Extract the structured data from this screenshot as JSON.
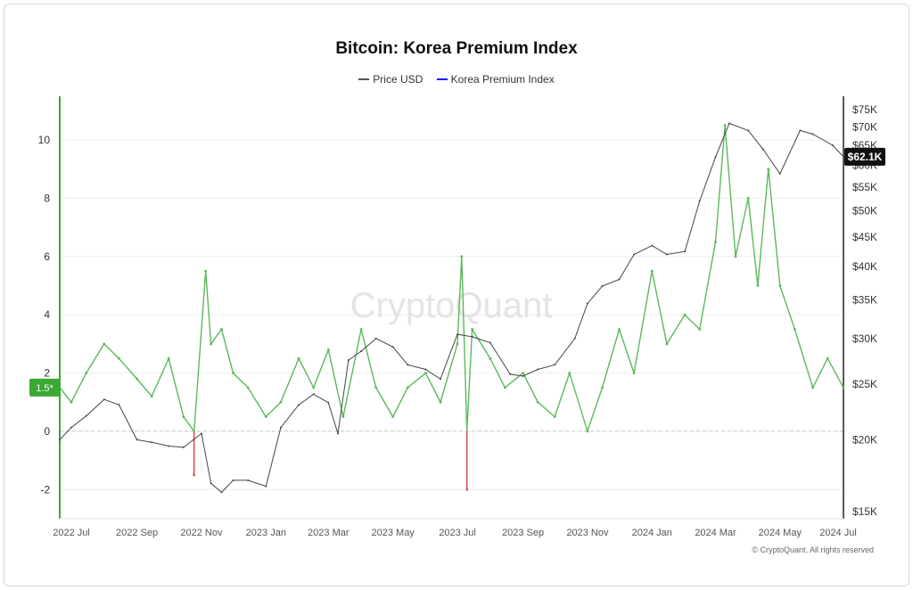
{
  "chart_data": {
    "type": "line",
    "title": "Bitcoin: Korea Premium Index",
    "credit": "© CryptoQuant. All rights reserved",
    "watermark": "CryptoQuant",
    "legend": [
      {
        "name": "Price USD",
        "color": "#555555"
      },
      {
        "name": "Korea Premium Index",
        "color": "#1a1aff"
      }
    ],
    "x_ticks": [
      "2022 Jul",
      "2022 Sep",
      "2022 Nov",
      "2023 Jan",
      "2023 Mar",
      "2023 May",
      "2023 Jul",
      "2023 Sep",
      "2023 Nov",
      "2024 Jan",
      "2024 Mar",
      "2024 May",
      "2024 Jul"
    ],
    "left_axis": {
      "ticks": [
        -2,
        0,
        2,
        4,
        6,
        8,
        10
      ],
      "ylim": [
        -3,
        11.5
      ]
    },
    "right_axis": {
      "ticks": [
        "$15K",
        "$20K",
        "$25K",
        "$30K",
        "$35K",
        "$40K",
        "$45K",
        "$50K",
        "$55K",
        "$60K",
        "$65K",
        "$70K",
        "$75K"
      ],
      "values": [
        15000,
        20000,
        25000,
        30000,
        35000,
        40000,
        45000,
        50000,
        55000,
        60000,
        65000,
        70000,
        75000
      ],
      "scale": "log"
    },
    "current_price_label": "$62.1K",
    "current_index_label": "1.5*",
    "colors": {
      "positive": "#5cb85c",
      "negative": "#d9534f",
      "price": "#444444",
      "accent": "#3aa935"
    },
    "series": [
      {
        "name": "Korea Premium Index",
        "x": [
          "2022-06-20",
          "2022-07-01",
          "2022-07-15",
          "2022-08-01",
          "2022-08-15",
          "2022-09-01",
          "2022-09-15",
          "2022-10-01",
          "2022-10-15",
          "2022-10-25",
          "2022-11-05",
          "2022-11-10",
          "2022-11-20",
          "2022-12-01",
          "2022-12-15",
          "2023-01-01",
          "2023-01-15",
          "2023-02-01",
          "2023-02-15",
          "2023-03-01",
          "2023-03-15",
          "2023-04-01",
          "2023-04-15",
          "2023-05-01",
          "2023-05-15",
          "2023-06-01",
          "2023-06-15",
          "2023-07-01",
          "2023-07-05",
          "2023-07-10",
          "2023-07-15",
          "2023-08-01",
          "2023-08-15",
          "2023-09-01",
          "2023-09-15",
          "2023-10-01",
          "2023-10-15",
          "2023-11-01",
          "2023-11-15",
          "2023-12-01",
          "2023-12-15",
          "2024-01-01",
          "2024-01-15",
          "2024-02-01",
          "2024-02-15",
          "2024-03-01",
          "2024-03-10",
          "2024-03-20",
          "2024-04-01",
          "2024-04-10",
          "2024-04-20",
          "2024-05-01",
          "2024-05-15",
          "2024-06-01",
          "2024-06-15",
          "2024-06-30"
        ],
        "y": [
          1.5,
          1.0,
          2.0,
          3.0,
          2.5,
          1.8,
          1.2,
          2.5,
          0.5,
          -1.5,
          5.5,
          3.0,
          3.5,
          2.0,
          1.5,
          0.5,
          1.0,
          2.5,
          1.5,
          2.8,
          0.5,
          3.5,
          1.5,
          0.5,
          1.5,
          2.0,
          1.0,
          3.0,
          6.0,
          -2.0,
          3.5,
          2.5,
          1.5,
          2.0,
          1.0,
          0.5,
          2.0,
          0.0,
          1.5,
          3.5,
          2.0,
          5.5,
          3.0,
          4.0,
          3.5,
          6.5,
          10.5,
          6.0,
          8.0,
          5.0,
          9.0,
          5.0,
          3.5,
          1.5,
          2.5,
          1.5
        ]
      },
      {
        "name": "Price USD",
        "x": [
          "2022-06-20",
          "2022-07-01",
          "2022-07-15",
          "2022-08-01",
          "2022-08-15",
          "2022-09-01",
          "2022-09-15",
          "2022-10-01",
          "2022-10-15",
          "2022-11-01",
          "2022-11-10",
          "2022-11-20",
          "2022-12-01",
          "2022-12-15",
          "2023-01-01",
          "2023-01-15",
          "2023-02-01",
          "2023-02-15",
          "2023-03-01",
          "2023-03-10",
          "2023-03-20",
          "2023-04-01",
          "2023-04-15",
          "2023-05-01",
          "2023-05-15",
          "2023-06-01",
          "2023-06-15",
          "2023-07-01",
          "2023-07-15",
          "2023-08-01",
          "2023-08-20",
          "2023-09-01",
          "2023-09-15",
          "2023-10-01",
          "2023-10-20",
          "2023-11-01",
          "2023-11-15",
          "2023-12-01",
          "2023-12-15",
          "2024-01-01",
          "2024-01-15",
          "2024-02-01",
          "2024-02-15",
          "2024-03-01",
          "2024-03-14",
          "2024-04-01",
          "2024-04-15",
          "2024-05-01",
          "2024-05-20",
          "2024-06-01",
          "2024-06-20",
          "2024-06-30"
        ],
        "y": [
          20000,
          21000,
          22000,
          23500,
          23000,
          20000,
          19800,
          19500,
          19400,
          20500,
          16800,
          16200,
          17000,
          17000,
          16600,
          21000,
          23000,
          24000,
          23200,
          20500,
          27500,
          28500,
          30000,
          29000,
          27000,
          26500,
          25500,
          30500,
          30200,
          29500,
          26000,
          25800,
          26500,
          27000,
          30000,
          34500,
          37000,
          38000,
          42000,
          43500,
          42000,
          42500,
          52000,
          62000,
          71000,
          69000,
          64000,
          58000,
          69000,
          68000,
          65000,
          62100
        ]
      }
    ]
  }
}
